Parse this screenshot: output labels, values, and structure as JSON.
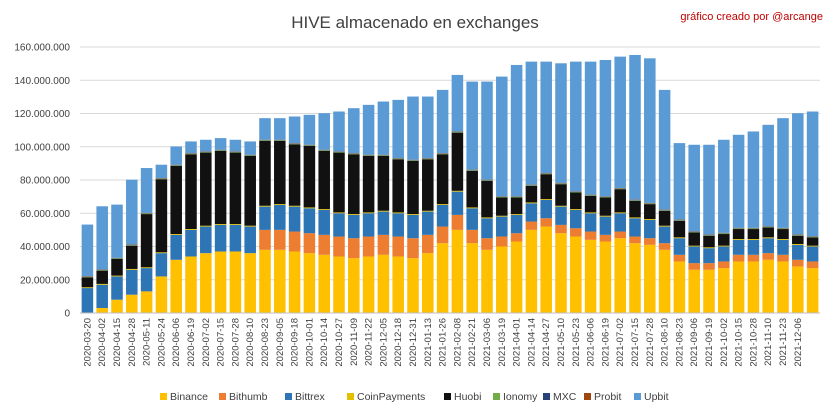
{
  "chart_data": {
    "type": "bar",
    "stacked": true,
    "title": "HIVE almacenado en exchanges",
    "credit": "gráfico creado por @arcange",
    "xlabel": "",
    "ylabel": "",
    "ylim": [
      0,
      160000000
    ],
    "ytick_values": [
      0,
      20000000,
      40000000,
      60000000,
      80000000,
      100000000,
      120000000,
      140000000,
      160000000
    ],
    "ytick_labels": [
      "0",
      "20.000.000",
      "40.000.000",
      "60.000.000",
      "80.000.000",
      "100.000.000",
      "120.000.000",
      "140.000.000",
      "160.000.000"
    ],
    "grid": true,
    "legend_position": "bottom",
    "categories": [
      "2020-03-20",
      "2020-04-02",
      "2020-04-15",
      "2020-04-28",
      "2020-05-11",
      "2020-05-24",
      "2020-06-06",
      "2020-06-19",
      "2020-07-02",
      "2020-07-15",
      "2020-07-28",
      "2020-08-10",
      "2020-08-23",
      "2020-09-05",
      "2020-09-18",
      "2020-10-01",
      "2020-10-14",
      "2020-10-27",
      "2020-11-09",
      "2020-11-22",
      "2020-12-05",
      "2020-12-18",
      "2020-12-31",
      "2021-01-13",
      "2021-01-26",
      "2021-02-08",
      "2021-02-21",
      "2021-03-06",
      "2021-03-19",
      "2021-04-01",
      "2021-04-14",
      "2021-04-27",
      "2021-05-10",
      "2021-05-23",
      "2021-06-05",
      "2021-06-18",
      "2021-07-01",
      "2021-07-14",
      "2021-07-27",
      "2021-08-09",
      "2021-08-22",
      "2021-09-04",
      "2021-09-17",
      "2021-09-30",
      "2021-10-13",
      "2021-10-26",
      "2021-11-08",
      "2021-11-21",
      "2021-12-04",
      "2021-12-17"
    ],
    "tick_labels": [
      "2020-03-20",
      "2020-04-02",
      "2020-04-15",
      "2020-04-28",
      "2020-05-11",
      "2020-05-24",
      "2020-06-06",
      "2020-06-19",
      "2020-07-02",
      "2020-07-15",
      "2020-07-28",
      "2020-08-10",
      "2020-08-23",
      "2020-09-05",
      "2020-09-18",
      "2020-10-01",
      "2020-10-14",
      "2020-10-27",
      "2020-11-09",
      "2020-11-22",
      "2020-12-05",
      "2020-12-18",
      "2020-12-31",
      "2021-01-13",
      "2021-01-26",
      "2021-02-08",
      "2021-02-21",
      "2021-03-06",
      "2021-03-19",
      "2021-04-01",
      "2021-04-14",
      "2021-04-27",
      "2021-05-10",
      "2021-05-23",
      "2021-06-06",
      "2021-06-19",
      "2021-07-02",
      "2021-07-15",
      "2021-07-28",
      "2021-08-10",
      "2021-08-23",
      "2021-09-06",
      "2021-09-19",
      "2021-10-02",
      "2021-10-15",
      "2021-10-28",
      "2021-11-10",
      "2021-11-23",
      "2021-12-06",
      ""
    ],
    "series": [
      {
        "name": "Binance",
        "color": "#ffc000",
        "values": [
          0,
          3000000,
          8000000,
          11000000,
          13000000,
          22000000,
          32000000,
          34000000,
          36000000,
          37000000,
          37000000,
          36000000,
          38000000,
          38000000,
          37000000,
          36000000,
          35000000,
          34000000,
          33000000,
          34000000,
          35000000,
          34000000,
          33000000,
          36000000,
          42000000,
          50000000,
          42000000,
          38000000,
          40000000,
          43000000,
          50000000,
          52000000,
          48000000,
          46000000,
          44000000,
          43000000,
          45000000,
          42000000,
          41000000,
          38000000,
          31000000,
          26000000,
          26000000,
          27000000,
          31000000,
          31000000,
          32000000,
          31000000,
          28000000,
          27000000
        ]
      },
      {
        "name": "Bithumb",
        "color": "#ed7d31",
        "values": [
          0,
          0,
          0,
          0,
          0,
          0,
          0,
          0,
          0,
          0,
          0,
          0,
          12000000,
          12000000,
          12000000,
          12000000,
          12000000,
          12000000,
          12000000,
          12000000,
          12000000,
          12000000,
          12000000,
          11000000,
          10000000,
          9000000,
          8000000,
          7000000,
          6000000,
          5000000,
          5000000,
          5000000,
          5000000,
          5000000,
          5000000,
          4000000,
          4000000,
          4000000,
          4000000,
          4000000,
          4000000,
          4000000,
          4000000,
          4000000,
          4000000,
          4000000,
          4000000,
          4000000,
          4000000,
          4000000
        ]
      },
      {
        "name": "Bittrex",
        "color": "#2e75b6",
        "values": [
          15000000,
          14000000,
          14000000,
          15000000,
          14000000,
          14000000,
          15000000,
          16000000,
          16000000,
          16000000,
          16000000,
          16000000,
          14000000,
          15000000,
          15000000,
          15000000,
          15000000,
          14000000,
          14000000,
          14000000,
          14000000,
          14000000,
          14000000,
          14000000,
          13000000,
          14000000,
          13000000,
          12000000,
          12000000,
          11000000,
          11000000,
          11000000,
          11000000,
          11000000,
          11000000,
          11000000,
          11000000,
          11000000,
          11000000,
          10000000,
          10000000,
          10000000,
          9000000,
          9000000,
          9000000,
          9000000,
          9000000,
          9000000,
          9000000,
          9000000
        ]
      },
      {
        "name": "CoinPayments",
        "color": "#e2c000",
        "values": [
          500000,
          500000,
          500000,
          500000,
          500000,
          500000,
          500000,
          500000,
          500000,
          500000,
          500000,
          500000,
          500000,
          500000,
          500000,
          500000,
          500000,
          500000,
          500000,
          500000,
          500000,
          500000,
          500000,
          500000,
          500000,
          500000,
          500000,
          500000,
          500000,
          500000,
          500000,
          500000,
          500000,
          500000,
          500000,
          500000,
          500000,
          500000,
          500000,
          500000,
          500000,
          500000,
          500000,
          500000,
          500000,
          500000,
          500000,
          500000,
          500000,
          500000
        ]
      },
      {
        "name": "Huobi",
        "color": "#111111",
        "values": [
          6000000,
          8000000,
          10000000,
          14000000,
          32000000,
          44000000,
          41000000,
          45000000,
          44000000,
          44000000,
          43000000,
          42000000,
          39000000,
          38000000,
          37000000,
          37000000,
          35000000,
          36000000,
          36000000,
          34000000,
          33000000,
          32000000,
          32000000,
          31000000,
          30000000,
          35000000,
          22000000,
          22000000,
          11000000,
          10000000,
          10000000,
          15000000,
          13000000,
          10000000,
          10000000,
          11000000,
          14000000,
          10000000,
          9000000,
          9000000,
          10000000,
          8000000,
          7000000,
          7000000,
          6000000,
          6000000,
          6000000,
          6000000,
          5000000,
          5000000
        ]
      },
      {
        "name": "Ionomy",
        "color": "#70ad47",
        "values": [
          300000,
          300000,
          300000,
          300000,
          300000,
          300000,
          300000,
          300000,
          300000,
          300000,
          300000,
          300000,
          300000,
          300000,
          300000,
          300000,
          300000,
          300000,
          300000,
          300000,
          300000,
          300000,
          300000,
          300000,
          300000,
          300000,
          300000,
          300000,
          300000,
          300000,
          300000,
          300000,
          300000,
          300000,
          300000,
          300000,
          300000,
          300000,
          300000,
          300000,
          300000,
          300000,
          300000,
          300000,
          300000,
          300000,
          300000,
          300000,
          300000,
          300000
        ]
      },
      {
        "name": "MXC",
        "color": "#264478",
        "values": [
          200000,
          200000,
          200000,
          200000,
          200000,
          200000,
          200000,
          200000,
          200000,
          200000,
          200000,
          200000,
          200000,
          200000,
          200000,
          200000,
          200000,
          200000,
          200000,
          200000,
          200000,
          200000,
          200000,
          200000,
          200000,
          200000,
          200000,
          200000,
          200000,
          200000,
          200000,
          200000,
          200000,
          200000,
          200000,
          200000,
          200000,
          200000,
          200000,
          200000,
          200000,
          200000,
          200000,
          200000,
          200000,
          200000,
          200000,
          200000,
          200000,
          200000
        ]
      },
      {
        "name": "Probit",
        "color": "#9e480e",
        "values": [
          200000,
          200000,
          200000,
          200000,
          200000,
          200000,
          200000,
          200000,
          200000,
          200000,
          200000,
          200000,
          200000,
          200000,
          200000,
          200000,
          200000,
          200000,
          200000,
          200000,
          200000,
          200000,
          200000,
          200000,
          200000,
          200000,
          200000,
          200000,
          200000,
          200000,
          200000,
          200000,
          200000,
          200000,
          200000,
          200000,
          200000,
          200000,
          200000,
          200000,
          200000,
          200000,
          200000,
          200000,
          200000,
          200000,
          200000,
          200000,
          200000,
          200000
        ]
      },
      {
        "name": "Upbit",
        "color": "#5b9bd5",
        "values": [
          31000000,
          38000000,
          32000000,
          39000000,
          27000000,
          8000000,
          11000000,
          7000000,
          7000000,
          7000000,
          7000000,
          8000000,
          13000000,
          13000000,
          16000000,
          18000000,
          22000000,
          24000000,
          27000000,
          30000000,
          32000000,
          35000000,
          38000000,
          37000000,
          38000000,
          34000000,
          53000000,
          59000000,
          72000000,
          79000000,
          74000000,
          67000000,
          72000000,
          78000000,
          80000000,
          82000000,
          79000000,
          87000000,
          87000000,
          72000000,
          46000000,
          52000000,
          54000000,
          56000000,
          56000000,
          58000000,
          61000000,
          66000000,
          73000000,
          75000000
        ]
      }
    ]
  }
}
